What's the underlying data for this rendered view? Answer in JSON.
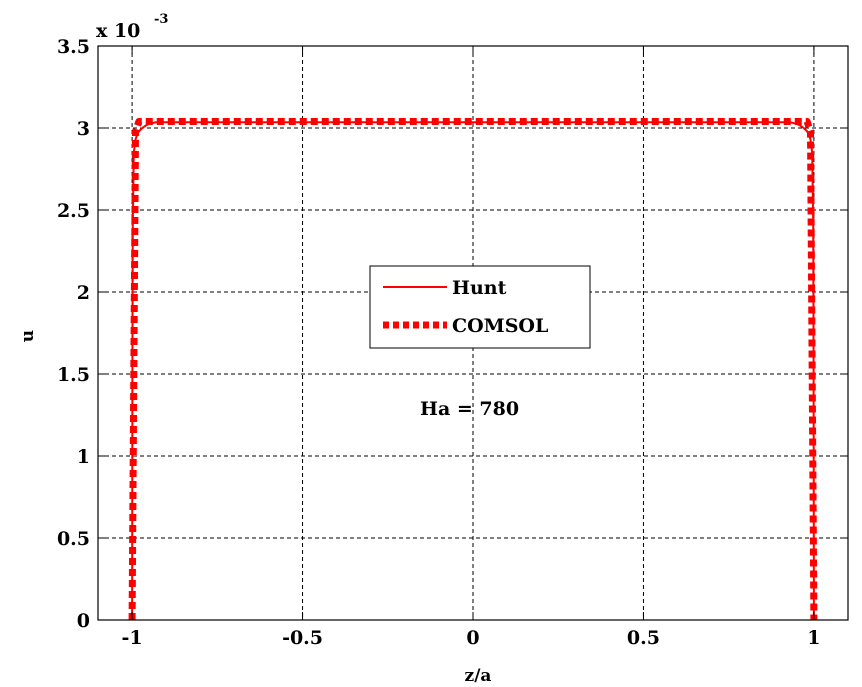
{
  "chart_data": {
    "type": "line",
    "title": "",
    "xlabel": "z/a",
    "ylabel": "u",
    "xlim": [
      -1.1,
      1.1
    ],
    "ylim": [
      0,
      3.5
    ],
    "y_scale_note": "x 10",
    "y_scale_exponent": "-3",
    "grid": true,
    "legend_position": "center",
    "x_tick_labels": [
      "-1",
      "-0.5",
      "0",
      "0.5",
      "1"
    ],
    "x_ticks": [
      -1,
      -0.5,
      0,
      0.5,
      1
    ],
    "y_tick_labels": [
      "0",
      "0.5",
      "1",
      "1.5",
      "2",
      "2.5",
      "3",
      "3.5"
    ],
    "y_ticks": [
      0,
      0.5,
      1,
      1.5,
      2,
      2.5,
      3,
      3.5
    ],
    "annotation": "Ha = 780",
    "series": [
      {
        "name": "Hunt",
        "color": "#ff0000",
        "style": "solid",
        "x": [
          -1.0,
          -0.999,
          -0.998,
          -0.995,
          -0.99,
          -0.985,
          -0.98,
          -0.97,
          -0.96,
          -0.95,
          -0.94,
          -0.93,
          -0.9,
          -0.8,
          -0.5,
          0,
          0.5,
          0.8,
          0.9,
          0.93,
          0.94,
          0.95,
          0.96,
          0.97,
          0.98,
          0.985,
          0.99,
          0.995,
          0.998,
          0.999,
          1.0
        ],
        "y": [
          0,
          1.6,
          2.4,
          2.85,
          2.93,
          2.96,
          2.98,
          3.0,
          3.015,
          3.025,
          3.03,
          3.035,
          3.035,
          3.035,
          3.035,
          3.035,
          3.035,
          3.035,
          3.035,
          3.035,
          3.03,
          3.025,
          3.015,
          3.0,
          2.98,
          2.96,
          2.93,
          2.85,
          2.4,
          1.6,
          0
        ]
      },
      {
        "name": "COMSOL",
        "color": "#ff0000",
        "style": "dotted",
        "x": [
          -1.0,
          -0.99,
          -0.98,
          -0.96,
          -0.9,
          -0.5,
          0,
          0.5,
          0.9,
          0.96,
          0.98,
          0.99,
          1.0
        ],
        "y": [
          0,
          2.98,
          3.04,
          3.04,
          3.04,
          3.04,
          3.04,
          3.04,
          3.04,
          3.04,
          3.04,
          2.98,
          0
        ]
      }
    ]
  }
}
